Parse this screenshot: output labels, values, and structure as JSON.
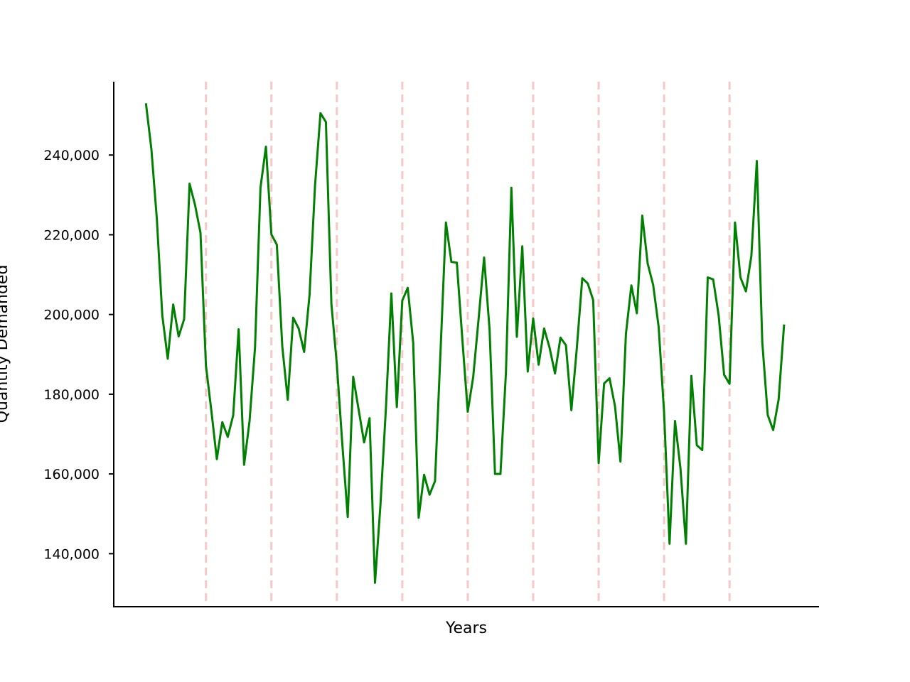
{
  "chart_data": {
    "type": "line",
    "xlabel": "Years",
    "ylabel": "Quantity Demanded",
    "ylim": [
      126700,
      258400
    ],
    "yticks": [
      140000,
      160000,
      180000,
      200000,
      220000,
      240000
    ],
    "ytick_labels": [
      "140,000",
      "160,000",
      "180,000",
      "200,000",
      "220,000",
      "240,000"
    ],
    "x": [
      0,
      1,
      2,
      3,
      4,
      5,
      6,
      7,
      8,
      9,
      10,
      11,
      12,
      13,
      14,
      15,
      16,
      17,
      18,
      19,
      20,
      21,
      22,
      23,
      24,
      25,
      26,
      27,
      28,
      29,
      30,
      31,
      32,
      33,
      34,
      35,
      36,
      37,
      38,
      39,
      40,
      41,
      42,
      43,
      44,
      45,
      46,
      47,
      48,
      49,
      50,
      51,
      52,
      53,
      54,
      55,
      56,
      57,
      58,
      59,
      60,
      61,
      62,
      63,
      64,
      65,
      66,
      67,
      68,
      69,
      70,
      71,
      72,
      73,
      74,
      75,
      76,
      77,
      78,
      79,
      80,
      81,
      82,
      83,
      84,
      85,
      86,
      87,
      88,
      89,
      90,
      91,
      92,
      93,
      94,
      95,
      96,
      97,
      98,
      99,
      100,
      101,
      102,
      103,
      104,
      105,
      106,
      107,
      108,
      109,
      110,
      111,
      112,
      113,
      114,
      115,
      116,
      117
    ],
    "xlim": [
      -5.9,
      123.4
    ],
    "vlines": [
      11,
      23,
      35,
      47,
      59,
      71,
      83,
      95,
      107
    ],
    "series": [
      {
        "values": [
          253000,
          241500,
          224000,
          199800,
          188900,
          202500,
          194500,
          198800,
          232800,
          227500,
          220500,
          187200,
          175800,
          163700,
          173000,
          169300,
          174700,
          196300,
          162300,
          173300,
          191700,
          231800,
          242100,
          220100,
          217500,
          192000,
          178600,
          199200,
          196500,
          190600,
          205000,
          232300,
          250500,
          248300,
          202700,
          187500,
          167600,
          149200,
          184400,
          176100,
          167900,
          174000,
          132700,
          152300,
          176500,
          205300,
          176800,
          203500,
          206700,
          192900,
          149000,
          159800,
          154800,
          158200,
          190400,
          223100,
          213200,
          213000,
          194000,
          175600,
          184300,
          199000,
          214300,
          196300,
          160000,
          160000,
          185300,
          231800,
          194400,
          217100,
          185700,
          199000,
          187400,
          196500,
          191700,
          185200,
          194200,
          192300,
          176000,
          191600,
          209100,
          207800,
          203600,
          162700,
          182700,
          184000,
          177000,
          163100,
          195100,
          207300,
          200300,
          224800,
          212700,
          207400,
          196900,
          175400,
          142500,
          173300,
          161400,
          142500,
          184600,
          167200,
          166000,
          209300,
          208800,
          199800,
          184900,
          182600,
          223100,
          209300,
          205800,
          214700,
          238500,
          193100,
          174800,
          171000,
          178700,
          197500
        ]
      }
    ],
    "colors": {
      "line": "#008000",
      "vline": "#f8c8c8",
      "axis": "#000000"
    },
    "grid": false,
    "legend": "none"
  }
}
